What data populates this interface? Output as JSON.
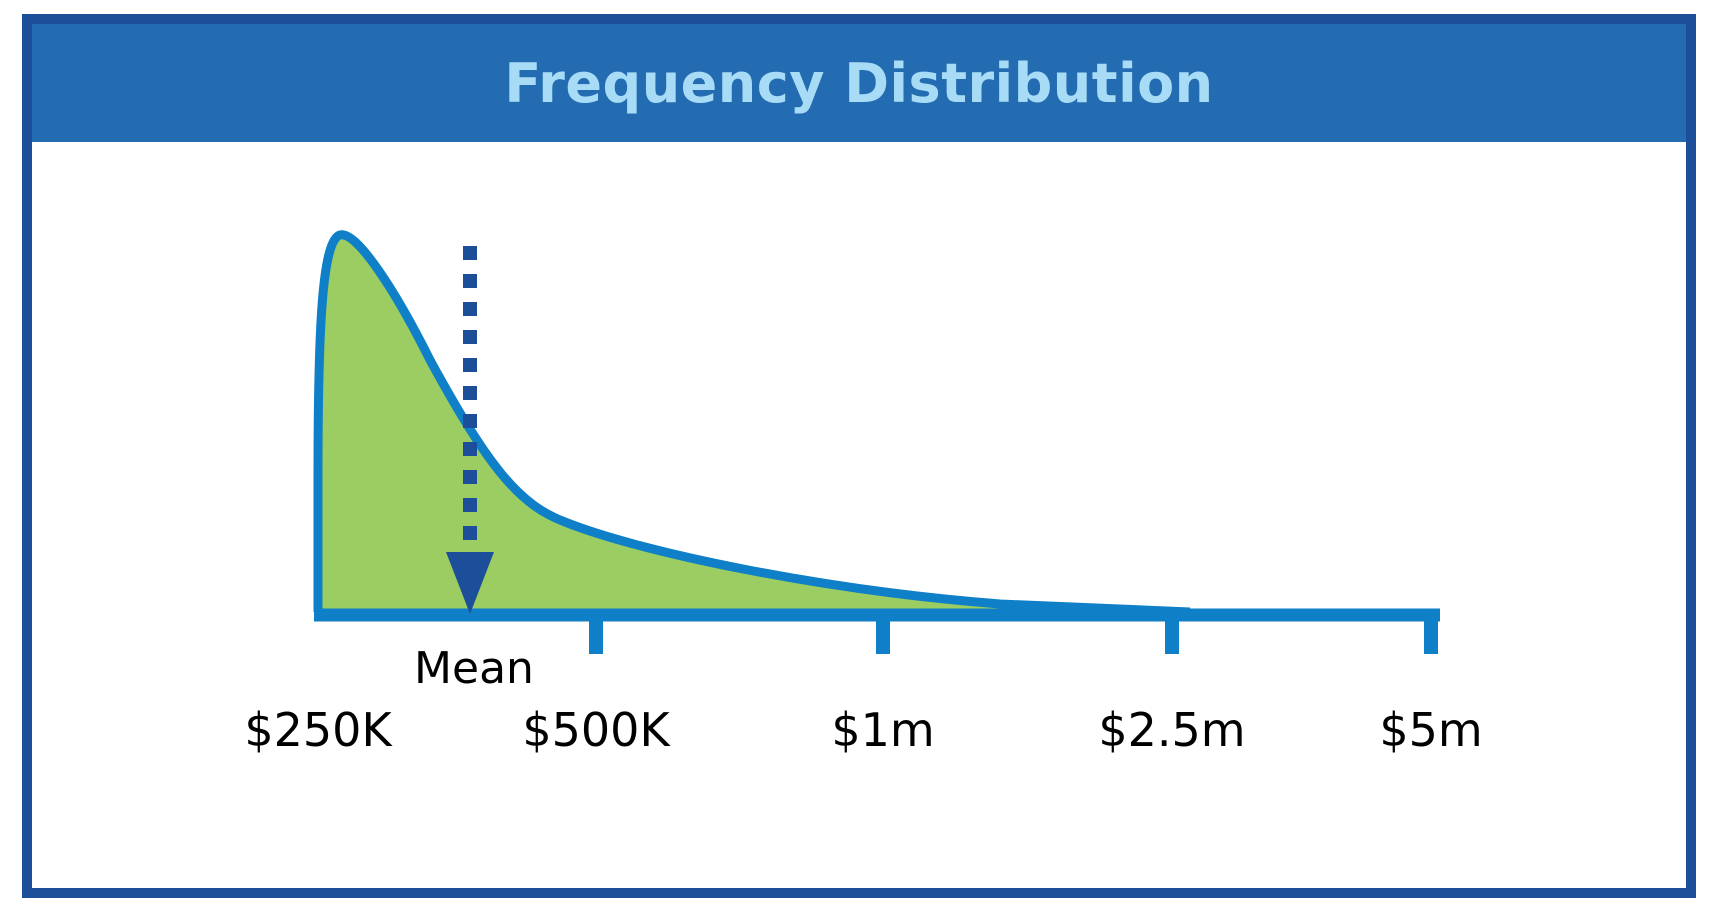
{
  "chart_data": {
    "type": "area",
    "title": "Frequency Distribution",
    "xlabel": "",
    "ylabel": "",
    "x_scale": "log",
    "x_ticks": [
      "$250K",
      "$500K",
      "$1m",
      "$2.5m",
      "$5m"
    ],
    "curve": "right-skewed (log-normal shaped) frequency distribution starting at $250K, peaking just above $250K and tapering to near zero by about $2.5m",
    "mean": {
      "label": "Mean",
      "position": "between $250K and $500K"
    },
    "grid": false,
    "legend": "none",
    "colors": {
      "title_bar": "#246cb1",
      "title_text": "#a8dcf6",
      "frame": "#1d4e9a",
      "fill": "#9ccd62",
      "line": "#0f7fc8",
      "mean_arrow": "#1d4e9a"
    }
  }
}
